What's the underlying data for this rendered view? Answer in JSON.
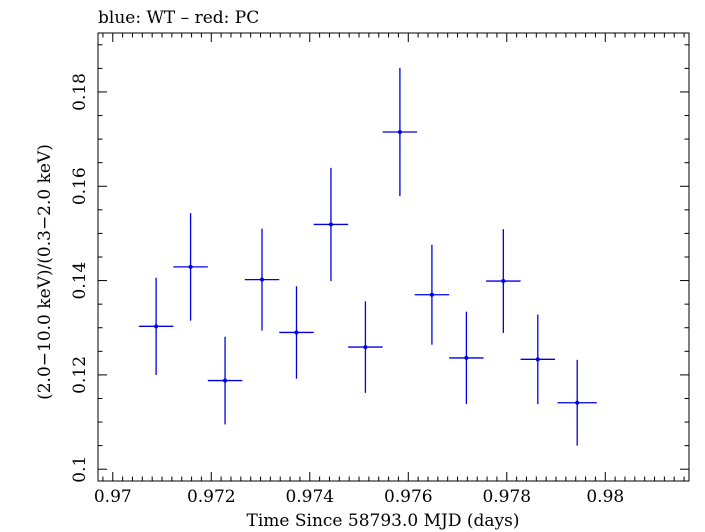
{
  "chart_data": {
    "type": "scatter",
    "title": "blue: WT – red: PC",
    "xlabel": "Time Since 58793.0 MJD (days)",
    "ylabel": "(2.0−10.0 keV)/(0.3−2.0 keV)",
    "xlim": [
      0.9697,
      0.9817
    ],
    "ylim": [
      0.0975,
      0.1925
    ],
    "xticks": [
      0.97,
      0.972,
      0.974,
      0.976,
      0.978,
      0.98
    ],
    "xtick_labels": [
      "0.97",
      "0.972",
      "0.974",
      "0.976",
      "0.978",
      "0.98"
    ],
    "yticks": [
      0.1,
      0.12,
      0.14,
      0.16,
      0.18
    ],
    "ytick_labels": [
      "0.1",
      "0.12",
      "0.14",
      "0.16",
      "0.18"
    ],
    "grid": false,
    "series": [
      {
        "color": "#0000e0",
        "points": [
          {
            "x": 0.97088,
            "xerr": 0.00035,
            "y": 0.1303,
            "yerr": 0.0103
          },
          {
            "x": 0.97158,
            "xerr": 0.00035,
            "y": 0.1429,
            "yerr": 0.0114
          },
          {
            "x": 0.97228,
            "xerr": 0.00035,
            "y": 0.1188,
            "yerr": 0.0093
          },
          {
            "x": 0.97303,
            "xerr": 0.00035,
            "y": 0.1402,
            "yerr": 0.0108
          },
          {
            "x": 0.97373,
            "xerr": 0.00035,
            "y": 0.129,
            "yerr": 0.0098
          },
          {
            "x": 0.97443,
            "xerr": 0.00035,
            "y": 0.1519,
            "yerr": 0.012
          },
          {
            "x": 0.97513,
            "xerr": 0.00035,
            "y": 0.1259,
            "yerr": 0.0097
          },
          {
            "x": 0.97583,
            "xerr": 0.00035,
            "y": 0.1715,
            "yerr": 0.0136
          },
          {
            "x": 0.97648,
            "xerr": 0.00035,
            "y": 0.137,
            "yerr": 0.0106
          },
          {
            "x": 0.97718,
            "xerr": 0.00035,
            "y": 0.1236,
            "yerr": 0.0098
          },
          {
            "x": 0.97793,
            "xerr": 0.00035,
            "y": 0.1399,
            "yerr": 0.011
          },
          {
            "x": 0.97863,
            "xerr": 0.00035,
            "y": 0.1233,
            "yerr": 0.0095
          },
          {
            "x": 0.97943,
            "xerr": 0.0004,
            "y": 0.1141,
            "yerr": 0.0091
          }
        ]
      }
    ]
  }
}
